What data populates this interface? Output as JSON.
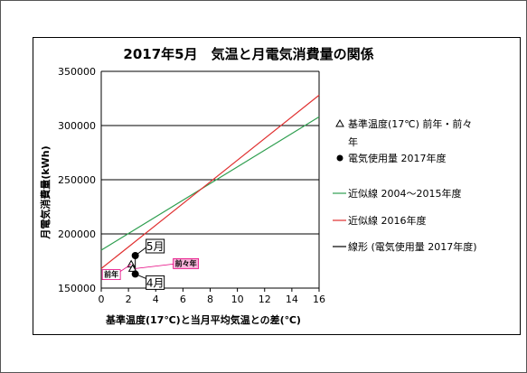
{
  "chart_data": {
    "type": "line",
    "title": "2017年5月　気温と月電気消費量の関係",
    "xlabel": "基準温度(17℃)と当月平均気温との差(℃)",
    "ylabel": "月電気消費量(kWh)",
    "xlim": [
      0,
      16
    ],
    "ylim": [
      150000,
      350000
    ],
    "x_ticks": [
      "0",
      "2",
      "4",
      "6",
      "8",
      "10",
      "12",
      "14",
      "16"
    ],
    "y_ticks": [
      "150000",
      "200000",
      "250000",
      "300000",
      "350000"
    ],
    "grid": "horizontal",
    "legend_position": "right",
    "series": [
      {
        "name": "基準温度(17℃) 前年・前々年",
        "type": "scatter",
        "marker": "triangle",
        "points": [
          [
            2.2,
            172000
          ],
          [
            2.3,
            168000
          ]
        ]
      },
      {
        "name": "電気使用量 2017年度",
        "type": "scatter",
        "marker": "circle",
        "points": [
          [
            2.5,
            180000
          ],
          [
            2.5,
            163000
          ]
        ]
      },
      {
        "name": "近似線 2004～2015年度",
        "type": "line",
        "color": "#2e9e4f",
        "points": [
          [
            0,
            185000
          ],
          [
            16,
            308000
          ]
        ]
      },
      {
        "name": "近似線 2016年度",
        "type": "line",
        "color": "#e03030",
        "points": [
          [
            0,
            168000
          ],
          [
            16,
            328000
          ]
        ]
      },
      {
        "name": "線形 (電気使用量 2017年度)",
        "type": "line",
        "color": "#000000",
        "points": [
          [
            2.5,
            180000
          ],
          [
            2.5,
            163000
          ]
        ]
      }
    ],
    "annotations": [
      {
        "text": "5月",
        "x": 2.5,
        "y": 180000
      },
      {
        "text": "4月",
        "x": 2.5,
        "y": 163000
      },
      {
        "text": "前年",
        "x": 2.2,
        "y": 172000
      },
      {
        "text": "前々年",
        "x": 2.3,
        "y": 168000
      }
    ]
  }
}
